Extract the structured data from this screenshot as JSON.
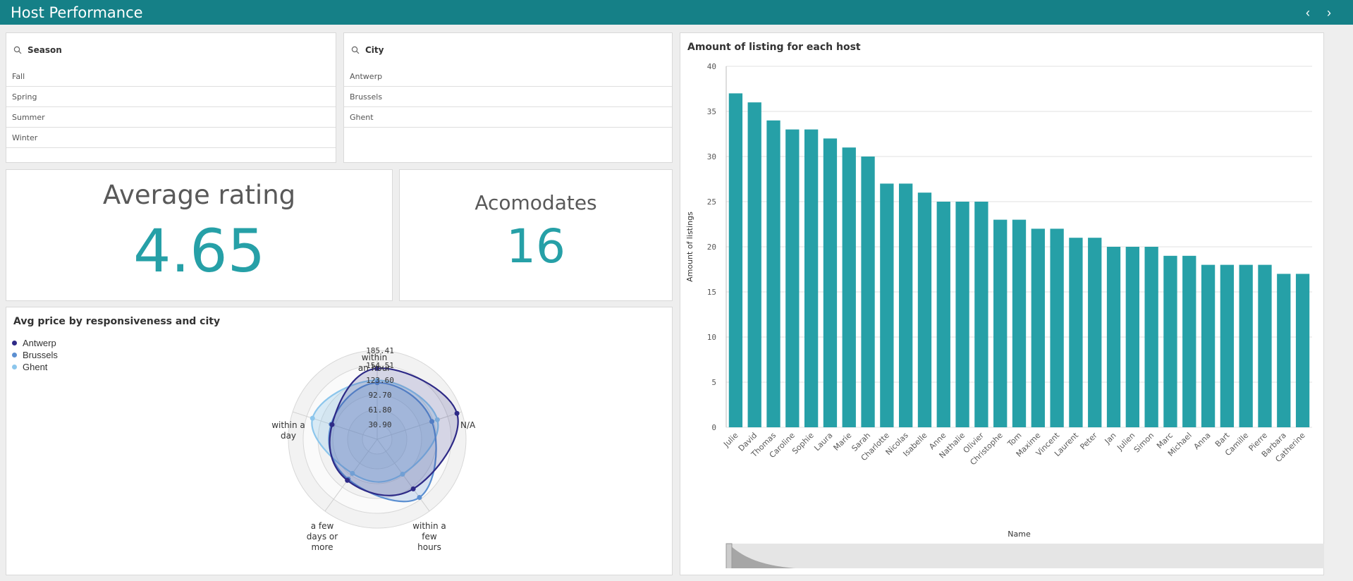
{
  "header": {
    "title": "Host Performance",
    "prev_icon": "chevron-left-icon",
    "next_icon": "chevron-right-icon"
  },
  "filters": [
    {
      "label": "Season",
      "icon": "search-icon",
      "items": [
        "Fall",
        "Spring",
        "Summer",
        "Winter"
      ]
    },
    {
      "label": "City",
      "icon": "search-icon",
      "items": [
        "Antwerp",
        "Brussels",
        "Ghent"
      ]
    }
  ],
  "kpis": [
    {
      "title": "Average rating",
      "value": "4.65"
    },
    {
      "title": "Acomodates",
      "value": "16"
    }
  ],
  "colors": {
    "header": "#158087",
    "kpi": "#26a0a7",
    "bar": "#26a0a7",
    "antwerp": "#2e2a87",
    "brussels": "#5b8fd1",
    "ghent": "#8cc6ec"
  },
  "radar": {
    "title": "Avg price by responsiveness and city",
    "legend": [
      "Antwerp",
      "Brussels",
      "Ghent"
    ],
    "ring_labels": [
      "30.90",
      "61.80",
      "92.70",
      "123.60",
      "154.51",
      "185.41"
    ]
  },
  "bar": {
    "title": "Amount of listing for each host",
    "xlabel": "Name",
    "ylabel": "Amount of listings"
  },
  "chart_data": [
    {
      "type": "bar",
      "title": "Amount of listing for each host",
      "xlabel": "Name",
      "ylabel": "Amount of listings",
      "ylim": [
        0,
        40
      ],
      "yticks": [
        0,
        5,
        10,
        15,
        20,
        25,
        30,
        35,
        40
      ],
      "grid": true,
      "categories": [
        "Julie",
        "David",
        "Thomas",
        "Caroline",
        "Sophie",
        "Laura",
        "Marie",
        "Sarah",
        "Charlotte",
        "Nicolas",
        "Isabelle",
        "Anne",
        "Nathalie",
        "Olivier",
        "Christophe",
        "Tom",
        "Maxime",
        "Vincent",
        "Laurent",
        "Peter",
        "Jan",
        "Julien",
        "Simon",
        "Marc",
        "Michael",
        "Anna",
        "Bart",
        "Camille",
        "Pierre",
        "Barbara",
        "Catherine"
      ],
      "values": [
        37,
        36,
        34,
        33,
        33,
        32,
        31,
        30,
        27,
        27,
        26,
        25,
        25,
        25,
        23,
        23,
        22,
        22,
        21,
        21,
        20,
        20,
        20,
        19,
        19,
        18,
        18,
        18,
        18,
        17,
        17
      ]
    },
    {
      "type": "radar",
      "title": "Avg price by responsiveness and city",
      "axes": [
        "within an hour",
        "N/A",
        "within a few hours",
        "a few days or more",
        "within a day"
      ],
      "rmax": 185.41,
      "series": [
        {
          "name": "Antwerp",
          "values": [
            148,
            175,
            128,
            106,
            99
          ]
        },
        {
          "name": "Brussels",
          "values": [
            118,
            120,
            150,
            103,
            101
          ]
        },
        {
          "name": "Ghent",
          "values": [
            123,
            132,
            90,
            88,
            142
          ]
        }
      ]
    }
  ]
}
